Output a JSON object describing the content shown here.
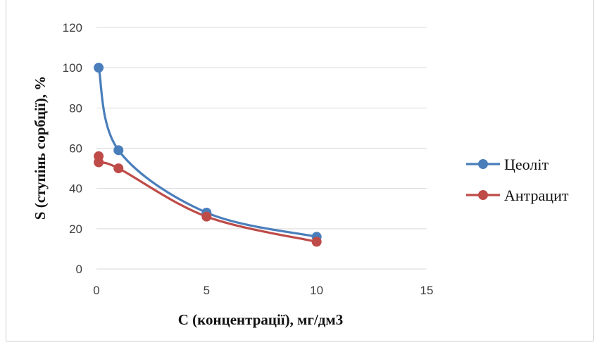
{
  "chart_data": {
    "type": "line",
    "title": "",
    "xlabel": "C (концентрації), мг/дм3",
    "ylabel": "S (ступінь сорбції), %",
    "xlim": [
      0,
      15
    ],
    "ylim": [
      0,
      120
    ],
    "xticks": [
      0,
      5,
      10,
      15
    ],
    "yticks": [
      0,
      20,
      40,
      60,
      80,
      100,
      120
    ],
    "grid": "horizontal",
    "legend_position": "right",
    "smooth": true,
    "series": [
      {
        "name": "Цеоліт",
        "color": "#4a7ebb",
        "x": [
          0.1,
          1,
          5,
          10
        ],
        "y": [
          100,
          59,
          28,
          16
        ]
      },
      {
        "name": "Антрацит",
        "color": "#be4b48",
        "x": [
          0.1,
          0.1,
          1,
          5,
          10
        ],
        "y": [
          56,
          53,
          50,
          26,
          13.5
        ]
      }
    ]
  }
}
